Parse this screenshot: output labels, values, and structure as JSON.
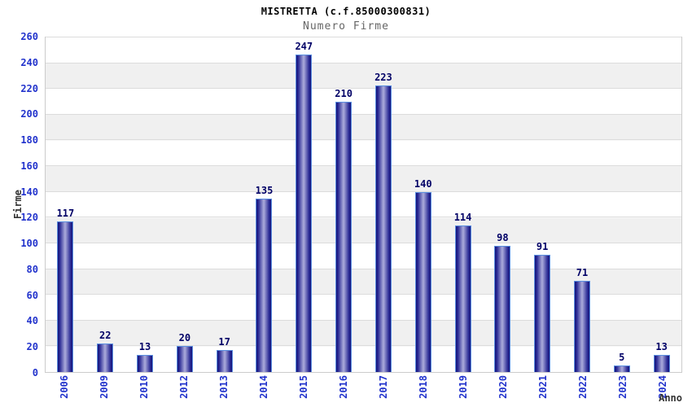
{
  "chart_data": {
    "type": "bar",
    "title": "MISTRETTA (c.f.85000300831)",
    "subtitle": "Numero Firme",
    "xlabel": "Anno",
    "ylabel": "Firme",
    "categories": [
      "2006",
      "2009",
      "2010",
      "2012",
      "2013",
      "2014",
      "2015",
      "2016",
      "2017",
      "2018",
      "2019",
      "2020",
      "2021",
      "2022",
      "2023",
      "2024"
    ],
    "values": [
      117,
      22,
      13,
      20,
      17,
      135,
      247,
      210,
      223,
      140,
      114,
      98,
      91,
      71,
      5,
      13
    ],
    "ylim": [
      0,
      260
    ],
    "yticks": [
      0,
      20,
      40,
      60,
      80,
      100,
      120,
      140,
      160,
      180,
      200,
      220,
      240,
      260
    ],
    "grid": "horizontal",
    "legend": "none",
    "background_bands": "alternating white / light gray every 20 units",
    "bar_labels": "value above each bar",
    "x_tick_rotation": "vertical bottom-to-top",
    "colors": {
      "bar_dark": "#14147a",
      "bar_light": "#a6a6d8",
      "bar_border": "#5b8fe0",
      "tick_label_blue": "#2233cc",
      "value_label_navy": "#000066",
      "subtitle_gray": "#666666",
      "axis_title": "#333333",
      "band_gray": "#f0f0f0",
      "gridline": "#dcdcdc",
      "background": "#ffffff"
    }
  }
}
